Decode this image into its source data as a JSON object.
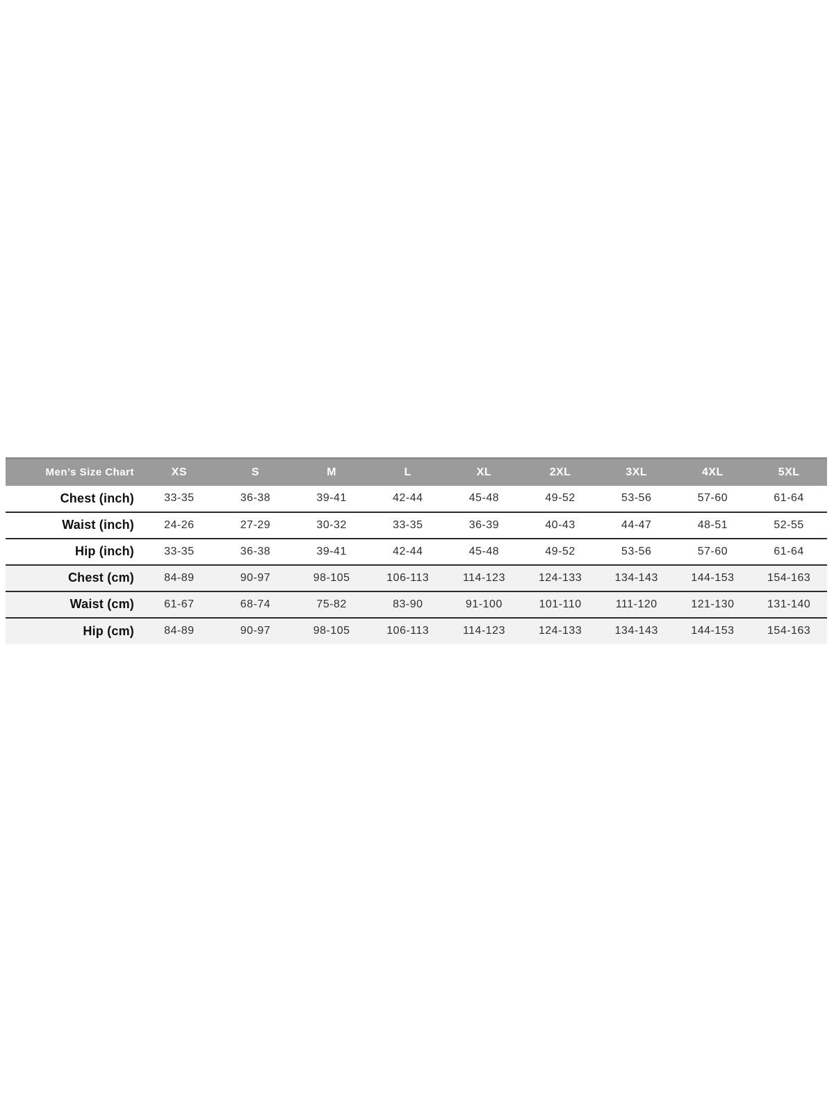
{
  "colors": {
    "header_bg": "#9b9b9b",
    "header_top_edge": "#8a8a8a",
    "header_text": "#ffffff",
    "stripe_bg": "#f2f2f2",
    "separator_line": "#2b2b2b",
    "label_text": "#0f0f0f",
    "cell_text": "#2e2e2e",
    "page_bg": "#ffffff"
  },
  "chart_data": {
    "type": "table",
    "title": "Men’s Size Chart",
    "columns": [
      "Men’s Size Chart",
      "XS",
      "S",
      "M",
      "L",
      "XL",
      "2XL",
      "3XL",
      "4XL",
      "5XL"
    ],
    "rows": [
      {
        "label": "Chest (inch)",
        "unit": "inch",
        "values": [
          "33-35",
          "36-38",
          "39-41",
          "42-44",
          "45-48",
          "49-52",
          "53-56",
          "57-60",
          "61-64"
        ]
      },
      {
        "label": "Waist (inch)",
        "unit": "inch",
        "values": [
          "24-26",
          "27-29",
          "30-32",
          "33-35",
          "36-39",
          "40-43",
          "44-47",
          "48-51",
          "52-55"
        ]
      },
      {
        "label": "Hip (inch)",
        "unit": "inch",
        "values": [
          "33-35",
          "36-38",
          "39-41",
          "42-44",
          "45-48",
          "49-52",
          "53-56",
          "57-60",
          "61-64"
        ]
      },
      {
        "label": "Chest (cm)",
        "unit": "cm",
        "values": [
          "84-89",
          "90-97",
          "98-105",
          "106-113",
          "114-123",
          "124-133",
          "134-143",
          "144-153",
          "154-163"
        ]
      },
      {
        "label": "Waist (cm)",
        "unit": "cm",
        "values": [
          "61-67",
          "68-74",
          "75-82",
          "83-90",
          "91-100",
          "101-110",
          "111-120",
          "121-130",
          "131-140"
        ]
      },
      {
        "label": "Hip (cm)",
        "unit": "cm",
        "values": [
          "84-89",
          "90-97",
          "98-105",
          "106-113",
          "114-123",
          "124-133",
          "134-143",
          "144-153",
          "154-163"
        ]
      }
    ],
    "layout_hints": {
      "header_style": "gray band, white bold text",
      "stripe_rule": "cm rows shaded light gray",
      "grid": "horizontal separators only, no bottom border on last row"
    }
  }
}
